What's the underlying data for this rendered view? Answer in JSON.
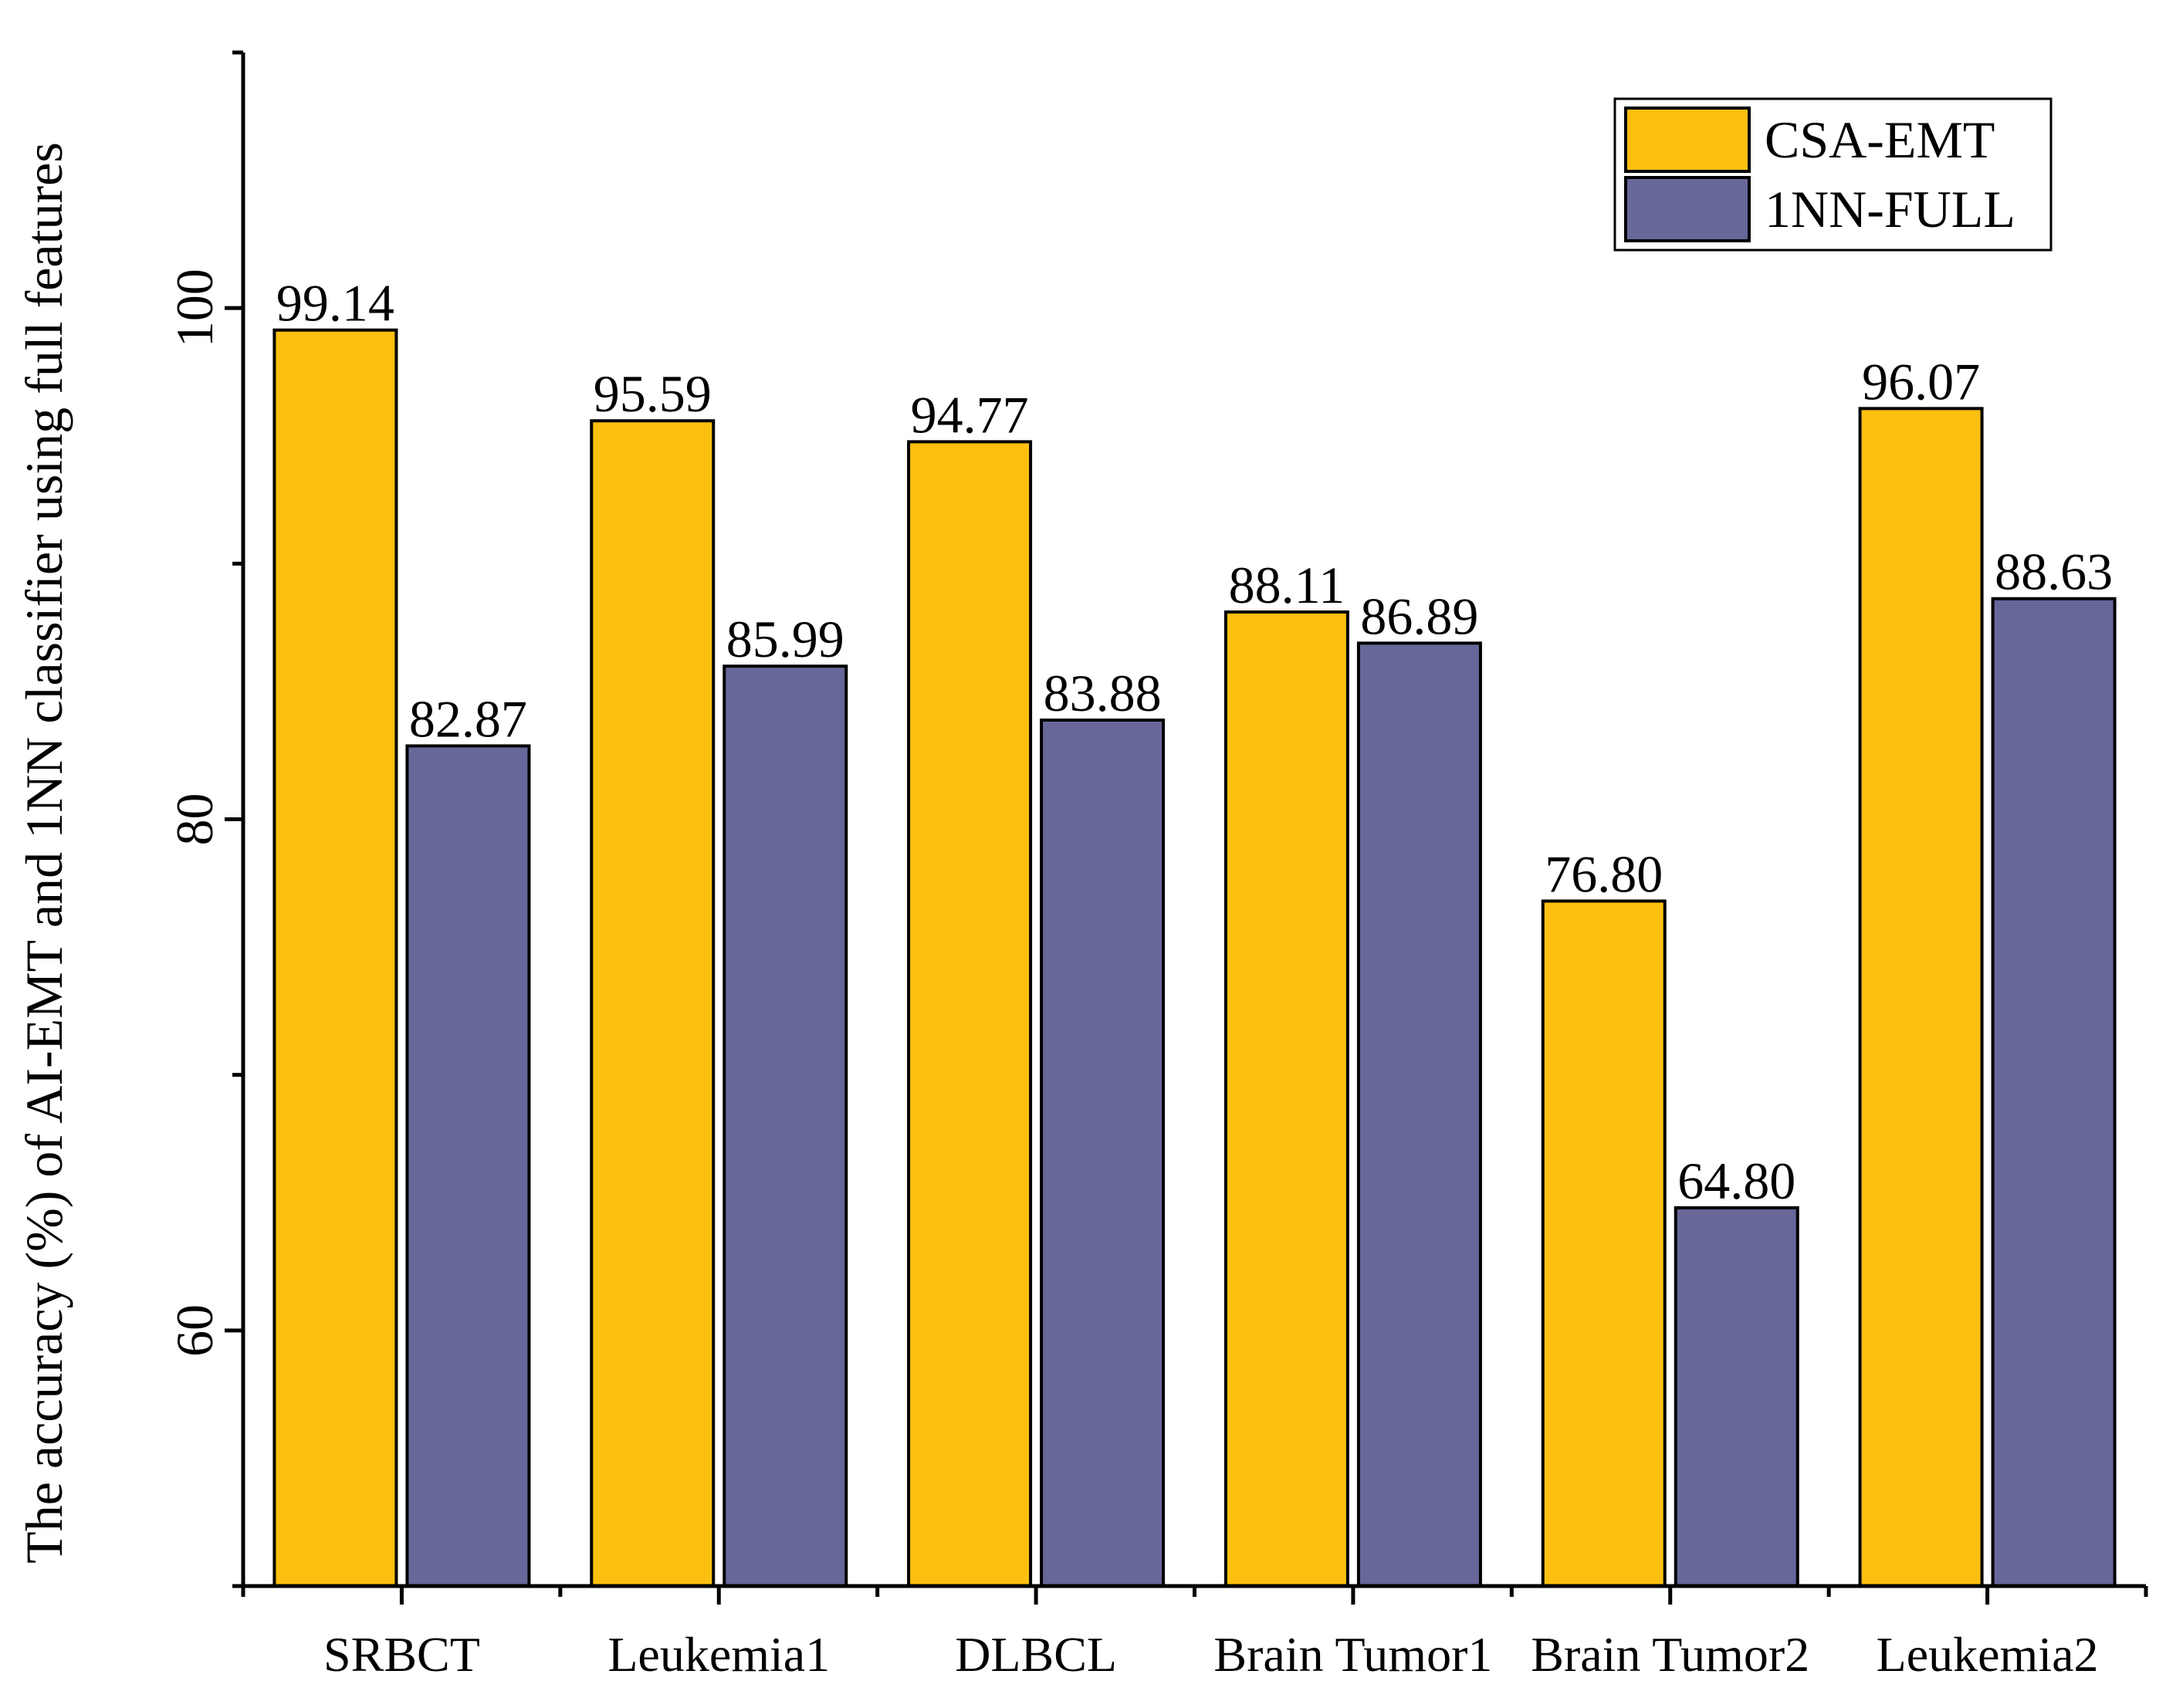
{
  "chart_data": {
    "type": "bar",
    "title": "",
    "xlabel": "",
    "ylabel": "The accuracy (%) of AI-EMT and 1NN classifier using full features",
    "ylim": [
      50,
      110
    ],
    "yticks_major": [
      60,
      80,
      100
    ],
    "ytick_minor_step": 10,
    "categories": [
      "SRBCT",
      "Leukemia1",
      "DLBCL",
      "Brain Tumor1",
      "Brain Tumor2",
      "Leukemia2"
    ],
    "series": [
      {
        "name": "CSA-EMT",
        "color": "#FDC010",
        "values": [
          99.14,
          95.59,
          94.77,
          88.11,
          76.8,
          96.07
        ],
        "labels": [
          "99.14",
          "95.59",
          "94.77",
          "88.11",
          "76.80",
          "96.07"
        ]
      },
      {
        "name": "1NN-FULL",
        "color": "#686799",
        "values": [
          82.87,
          85.99,
          83.88,
          86.89,
          64.8,
          88.63
        ],
        "labels": [
          "82.87",
          "85.99",
          "83.88",
          "86.89",
          "64.80",
          "88.63"
        ]
      }
    ],
    "legend_position": "top-right",
    "grid": false
  }
}
